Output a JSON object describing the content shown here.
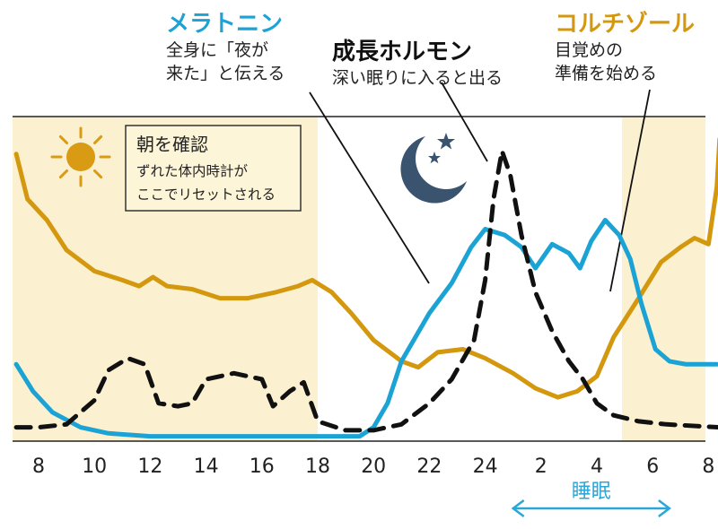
{
  "chart_data": {
    "type": "line",
    "x_ticks": [
      "8",
      "10",
      "12",
      "14",
      "16",
      "18",
      "20",
      "22",
      "24",
      "2",
      "4",
      "6",
      "8"
    ],
    "x_domain": [
      7,
      32.5
    ],
    "y_domain": [
      0,
      100
    ],
    "daylight_bands": [
      [
        7,
        18
      ],
      [
        28.9,
        32.5
      ]
    ],
    "series": [
      {
        "key": "melatonin",
        "name": "メラトニン",
        "color": "#1aa3d4",
        "dash": "solid",
        "points": [
          [
            7.2,
            25
          ],
          [
            7.8,
            16
          ],
          [
            8.5,
            9
          ],
          [
            9.5,
            4
          ],
          [
            10.5,
            2
          ],
          [
            12,
            1
          ],
          [
            14,
            1
          ],
          [
            16,
            1
          ],
          [
            18,
            1
          ],
          [
            19.5,
            1
          ],
          [
            20,
            4
          ],
          [
            20.5,
            12
          ],
          [
            21,
            26
          ],
          [
            22,
            42
          ],
          [
            22.8,
            52
          ],
          [
            23.5,
            64
          ],
          [
            24,
            70
          ],
          [
            24.7,
            68
          ],
          [
            25.3,
            64
          ],
          [
            25.8,
            57
          ],
          [
            26.4,
            65
          ],
          [
            27,
            62
          ],
          [
            27.4,
            57
          ],
          [
            27.8,
            66
          ],
          [
            28.3,
            73
          ],
          [
            28.8,
            68
          ],
          [
            29.2,
            60
          ],
          [
            29.6,
            45
          ],
          [
            30.1,
            30
          ],
          [
            30.6,
            26
          ],
          [
            31.2,
            25
          ],
          [
            32.3,
            25
          ]
        ]
      },
      {
        "key": "cortisol",
        "name": "コルチゾール",
        "color": "#d4980f",
        "dash": "solid",
        "points": [
          [
            7.2,
            95
          ],
          [
            7.6,
            80
          ],
          [
            8.3,
            73
          ],
          [
            9,
            63
          ],
          [
            10,
            56
          ],
          [
            11,
            53
          ],
          [
            11.6,
            51
          ],
          [
            12.1,
            54
          ],
          [
            12.6,
            51
          ],
          [
            13.5,
            50
          ],
          [
            14.5,
            47
          ],
          [
            15.5,
            47
          ],
          [
            16.5,
            49
          ],
          [
            17.3,
            51
          ],
          [
            17.8,
            53
          ],
          [
            18.5,
            49
          ],
          [
            19.2,
            42
          ],
          [
            20,
            33
          ],
          [
            21,
            26
          ],
          [
            21.6,
            24
          ],
          [
            22.3,
            29
          ],
          [
            23.2,
            30
          ],
          [
            24,
            27
          ],
          [
            25,
            22
          ],
          [
            25.8,
            17
          ],
          [
            26.6,
            14
          ],
          [
            27.3,
            16
          ],
          [
            28,
            21
          ],
          [
            28.6,
            34
          ],
          [
            29.5,
            47
          ],
          [
            30.3,
            59
          ],
          [
            31,
            64
          ],
          [
            31.5,
            67
          ],
          [
            32,
            65
          ],
          [
            32.3,
            84
          ],
          [
            32.4,
            100
          ]
        ]
      },
      {
        "key": "growth_hormone",
        "name": "成長ホルモン",
        "color": "#111111",
        "dash": "dashed",
        "points": [
          [
            7.2,
            4
          ],
          [
            8,
            4
          ],
          [
            9,
            5
          ],
          [
            10,
            13
          ],
          [
            10.5,
            23
          ],
          [
            11.2,
            27
          ],
          [
            11.8,
            25
          ],
          [
            12.3,
            12
          ],
          [
            13,
            11
          ],
          [
            13.5,
            12
          ],
          [
            14,
            20
          ],
          [
            15,
            22
          ],
          [
            16,
            20
          ],
          [
            16.4,
            11
          ],
          [
            17,
            16
          ],
          [
            17.5,
            19
          ],
          [
            18,
            6
          ],
          [
            19,
            3
          ],
          [
            20,
            3
          ],
          [
            21,
            5
          ],
          [
            22,
            12
          ],
          [
            22.8,
            20
          ],
          [
            23.6,
            33
          ],
          [
            24,
            53
          ],
          [
            24.3,
            80
          ],
          [
            24.6,
            96
          ],
          [
            24.9,
            88
          ],
          [
            25.3,
            68
          ],
          [
            25.8,
            49
          ],
          [
            26.4,
            36
          ],
          [
            27,
            26
          ],
          [
            27.5,
            20
          ],
          [
            28,
            12
          ],
          [
            28.6,
            8
          ],
          [
            29.5,
            6
          ],
          [
            30.5,
            5
          ],
          [
            32.4,
            4
          ]
        ]
      }
    ],
    "labels": {
      "melatonin": {
        "title": "メラトニン",
        "lines": [
          "全身に「夜が",
          "来た」と伝える"
        ]
      },
      "growth_hormone": {
        "title": "成長ホルモン",
        "lines": [
          "深い眠りに入ると出る"
        ]
      },
      "cortisol": {
        "title": "コルチゾール",
        "lines": [
          "目覚めの",
          "準備を始める"
        ]
      }
    },
    "morning_note": {
      "title": "朝を確認",
      "lines": [
        "ずれた体内時計が",
        "ここでリセットされる"
      ]
    },
    "sleep": {
      "label": "睡眠",
      "range": [
        25,
        30.6
      ]
    },
    "grid": false,
    "legend": "none"
  },
  "colors": {
    "band": "#fbf0cf",
    "sun": "#d99a14",
    "moon": "#3a5470",
    "sleep_arrow": "#2aa7d6",
    "frame": "#222222"
  },
  "icons": {
    "sun": "sun-icon",
    "moon": "crescent-moon-stars-icon"
  }
}
